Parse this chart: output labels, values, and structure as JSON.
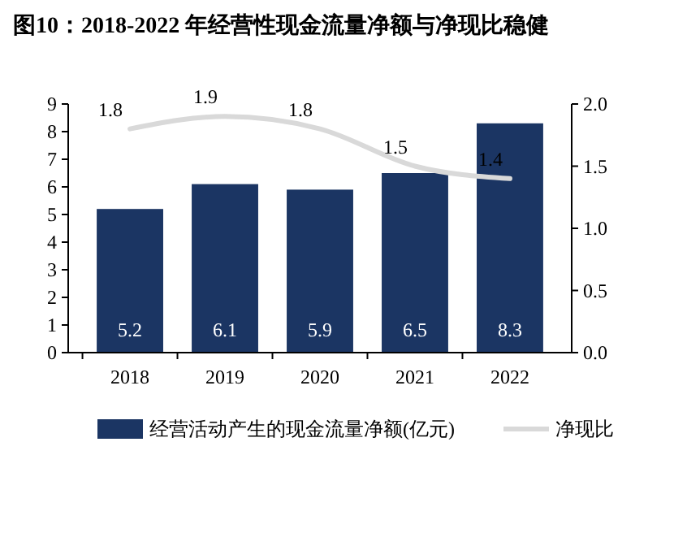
{
  "chart_data": {
    "type": "bar",
    "title": "图10：2018-2022 年经营性现金流量净额与净现比稳健",
    "categories": [
      "2018",
      "2019",
      "2020",
      "2021",
      "2022"
    ],
    "series": [
      {
        "name": "经营活动产生的现金流量净额(亿元)",
        "color": "#1b3563",
        "values": [
          5.2,
          6.1,
          5.9,
          6.5,
          8.3
        ]
      },
      {
        "name": "净现比",
        "type": "line",
        "axis": "y2",
        "color": "#d9d9d9",
        "values": [
          1.8,
          1.9,
          1.8,
          1.5,
          1.4
        ]
      }
    ],
    "ylim": [
      0,
      9
    ],
    "yticks": [
      0,
      1,
      2,
      3,
      4,
      5,
      6,
      7,
      8,
      9
    ],
    "y2lim": [
      0,
      2
    ],
    "y2ticks": [
      {
        "value": 0,
        "label": "0.0"
      },
      {
        "value": 0.5,
        "label": "0.5"
      },
      {
        "value": 1,
        "label": "1.0"
      },
      {
        "value": 1.5,
        "label": "1.5"
      },
      {
        "value": 2,
        "label": "2.0"
      }
    ],
    "data_labels": true,
    "legend": "bottom",
    "grid": false
  }
}
